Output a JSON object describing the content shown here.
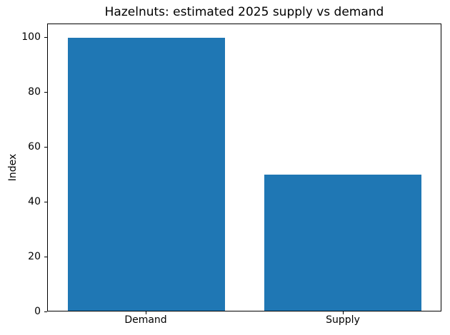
{
  "chart_data": {
    "type": "bar",
    "title": "Hazelnuts: estimated 2025 supply vs demand",
    "categories": [
      "Demand",
      "Supply"
    ],
    "values": [
      100,
      50
    ],
    "xlabel": "",
    "ylabel": "Index",
    "ylim": [
      0,
      105
    ],
    "yticks": [
      0,
      20,
      40,
      60,
      80,
      100
    ],
    "bar_color": "#1f77b4",
    "bar_width_fraction": 0.8,
    "grid": false,
    "legend": null,
    "background_color": "#ffffff",
    "axis_color": "#000000"
  }
}
